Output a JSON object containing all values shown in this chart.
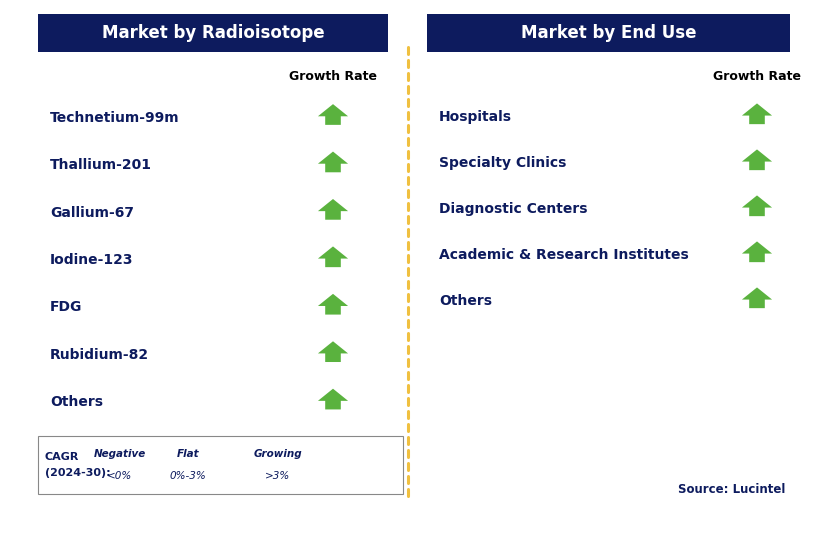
{
  "left_title": "Market by Radioisotope",
  "right_title": "Market by End Use",
  "left_items": [
    "Technetium-99m",
    "Thallium-201",
    "Gallium-67",
    "Iodine-123",
    "FDG",
    "Rubidium-82",
    "Others"
  ],
  "right_items": [
    "Hospitals",
    "Specialty Clinics",
    "Diagnostic Centers",
    "Academic & Research Institutes",
    "Others"
  ],
  "header_bg_color": "#0d1b5e",
  "header_text_color": "#ffffff",
  "item_text_color": "#0d1b5e",
  "growth_rate_label": "Growth Rate",
  "arrow_green": "#5ab23e",
  "arrow_red": "#cc0000",
  "arrow_yellow": "#f0a500",
  "legend_cagr": "CAGR",
  "legend_cagr2": "(2024-30):",
  "legend_negative_label": "Negative",
  "legend_negative_range": "<0%",
  "legend_flat_label": "Flat",
  "legend_flat_range": "0%-3%",
  "legend_growing_label": "Growing",
  "legend_growing_range": ">3%",
  "source_text": "Source: Lucintel",
  "dashed_line_color": "#f0c040",
  "bg_color": "#ffffff"
}
